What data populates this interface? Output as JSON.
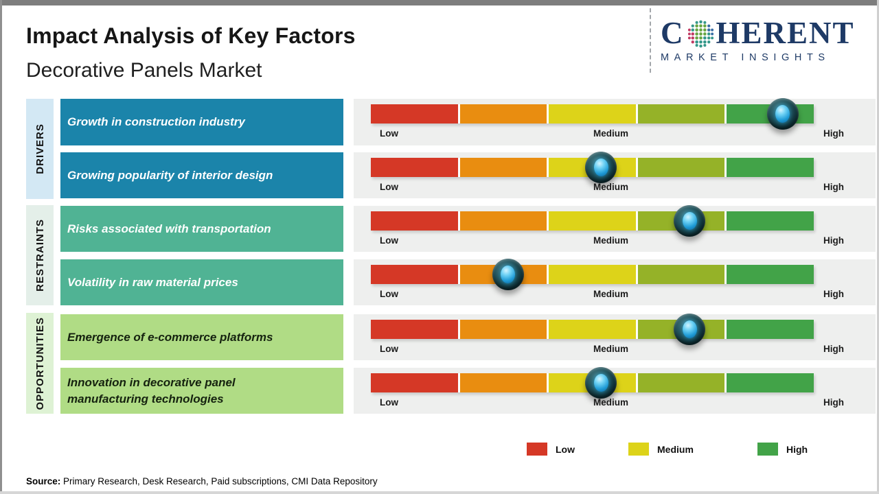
{
  "page": {
    "title": "Impact Analysis of Key Factors",
    "subtitle": "Decorative Panels Market",
    "source_label": "Source:",
    "source_text": " Primary Research, Desk Research, Paid subscriptions, CMI Data Repository"
  },
  "logo": {
    "word_start": "C",
    "word_end": "HERENT",
    "subtext": "MARKET INSIGHTS",
    "brand_color": "#1e3a66"
  },
  "scale": {
    "low": "Low",
    "medium": "Medium",
    "high": "High"
  },
  "categories": [
    {
      "name": "DRIVERS",
      "sidebar_color": "#d3e8f4",
      "box_color": "#1b84aa",
      "text_color": "#ffffff"
    },
    {
      "name": "RESTRAINTS",
      "sidebar_color": "#e4efe9",
      "box_color": "#50b394",
      "text_color": "#ffffff"
    },
    {
      "name": "OPPORTUNITIES",
      "sidebar_color": "#def2d4",
      "box_color": "#b0dc85",
      "text_color": "#15220f"
    }
  ],
  "rows": [
    {
      "category": "DRIVERS",
      "factor": "Growth in construction industry",
      "impact_percent": 93
    },
    {
      "category": "DRIVERS",
      "factor": "Growing popularity of interior design",
      "impact_percent": 52
    },
    {
      "category": "RESTRAINTS",
      "factor": "Risks associated with transportation",
      "impact_percent": 72
    },
    {
      "category": "RESTRAINTS",
      "factor": "Volatility in raw material prices",
      "impact_percent": 31
    },
    {
      "category": "OPPORTUNITIES",
      "factor": "Emergence of e-commerce platforms",
      "impact_percent": 72
    },
    {
      "category": "OPPORTUNITIES",
      "factor": "Innovation in decorative panel manufacturing technologies",
      "impact_percent": 52
    }
  ],
  "legend": [
    {
      "label": "Low",
      "color": "#d53826"
    },
    {
      "label": "Medium",
      "color": "#ddd319"
    },
    {
      "label": "High",
      "color": "#42a348"
    }
  ],
  "chart_data": {
    "type": "scatter",
    "title": "Impact Analysis of Key Factors",
    "subtitle": "Decorative Panels Market",
    "xlabel": "Impact level",
    "x_range_percent": [
      0,
      100
    ],
    "x_scale_labels": [
      "Low",
      "Medium",
      "High"
    ],
    "segment_colors": [
      "#d53826",
      "#e98d10",
      "#ddd319",
      "#95b228",
      "#42a348"
    ],
    "categories": [
      "Growth in construction industry",
      "Growing popularity of interior design",
      "Risks associated with transportation",
      "Volatility in raw material prices",
      "Emergence of e-commerce platforms",
      "Innovation in decorative panel manufacturing technologies"
    ],
    "groups": [
      "DRIVERS",
      "DRIVERS",
      "RESTRAINTS",
      "RESTRAINTS",
      "OPPORTUNITIES",
      "OPPORTUNITIES"
    ],
    "series": [
      {
        "name": "Impact (% of Low–High scale)",
        "values": [
          93,
          52,
          72,
          31,
          72,
          52
        ]
      }
    ],
    "legend": [
      "Low",
      "Medium",
      "High"
    ],
    "legend_position": "bottom-right",
    "grid": false
  }
}
